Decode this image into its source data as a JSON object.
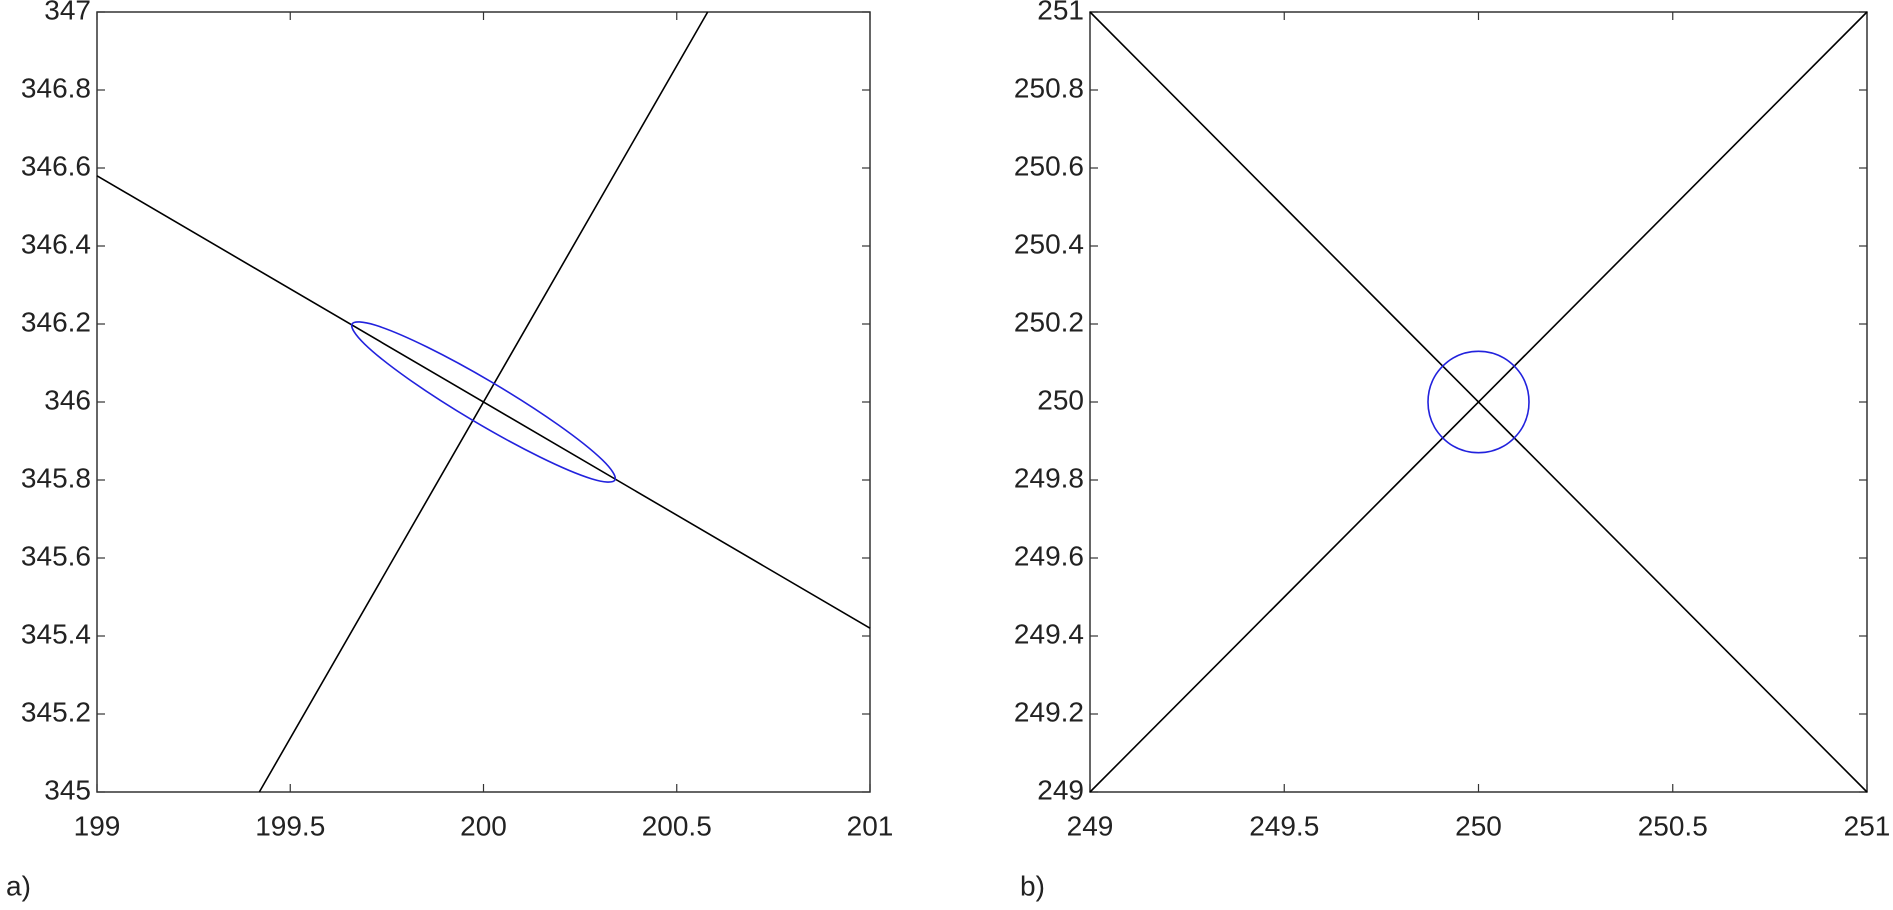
{
  "chart_data": [
    {
      "type": "line",
      "label": "a)",
      "xlim": [
        199,
        201
      ],
      "ylim": [
        345,
        347
      ],
      "xticks": [
        199,
        199.5,
        200,
        200.5,
        201
      ],
      "yticks": [
        345,
        345.2,
        345.4,
        345.6,
        345.8,
        346,
        346.2,
        346.4,
        346.6,
        346.8,
        347
      ],
      "series": [
        {
          "color": "#000000",
          "x": [
            199,
            201
          ],
          "values": [
            346.58,
            345.42
          ]
        },
        {
          "color": "#000000",
          "x": [
            199.42,
            200.58
          ],
          "values": [
            345,
            347
          ]
        },
        {
          "color": "#2222dd",
          "smooth": true,
          "x": [
            200.34,
            200.308,
            200.194,
            200.028,
            199.854,
            199.72,
            199.66,
            199.692,
            199.806,
            199.972,
            200.146,
            200.28,
            200.34
          ],
          "values": [
            345.8,
            345.851,
            345.941,
            346.047,
            346.141,
            346.197,
            346.2,
            346.149,
            346.059,
            345.953,
            345.859,
            345.803,
            345.8
          ]
        }
      ]
    },
    {
      "type": "line",
      "label": "b)",
      "xlim": [
        249,
        251
      ],
      "ylim": [
        249,
        251
      ],
      "xticks": [
        249,
        249.5,
        250,
        250.5,
        251
      ],
      "yticks": [
        249,
        249.2,
        249.4,
        249.6,
        249.8,
        250,
        250.2,
        250.4,
        250.6,
        250.8,
        251
      ],
      "series": [
        {
          "color": "#000000",
          "x": [
            249,
            251
          ],
          "values": [
            251,
            249
          ]
        },
        {
          "color": "#000000",
          "x": [
            249,
            251
          ],
          "values": [
            249,
            251
          ]
        },
        {
          "color": "#2222dd",
          "smooth": true,
          "x": [
            250.13,
            250.113,
            250.065,
            250,
            249.935,
            249.887,
            249.87,
            249.887,
            249.935,
            250,
            250.065,
            250.113,
            250.13
          ],
          "values": [
            250,
            250.065,
            250.113,
            250.13,
            250.113,
            250.065,
            250,
            249.935,
            249.887,
            249.87,
            249.887,
            249.935,
            250
          ]
        }
      ]
    }
  ]
}
